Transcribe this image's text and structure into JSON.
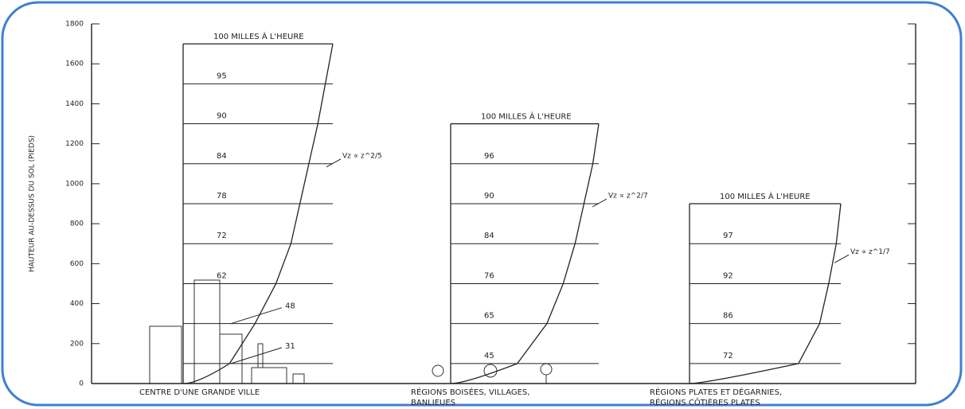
{
  "chart_data": {
    "type": "wind-profile",
    "ylabel": "HAUTEUR AU-DESSUS DU SOL (PIEDS)",
    "ylim": [
      0,
      1800
    ],
    "yticks": [
      0,
      200,
      400,
      600,
      800,
      1000,
      1200,
      1400,
      1600,
      1800
    ],
    "color": "#222222",
    "panels": [
      {
        "title": "100 MILLES À L'HEURE",
        "label": [
          "CENTRE D'UNE GRANDE VILLE"
        ],
        "formula": "Vz ∝ z^2/5",
        "top": 1700,
        "levels": [
          {
            "height": 100,
            "speed": 31
          },
          {
            "height": 300,
            "speed": 48
          },
          {
            "height": 500,
            "speed": 62
          },
          {
            "height": 700,
            "speed": 72
          },
          {
            "height": 900,
            "speed": 78
          },
          {
            "height": 1100,
            "speed": 84
          },
          {
            "height": 1300,
            "speed": 90
          },
          {
            "height": 1500,
            "speed": 95
          }
        ]
      },
      {
        "title": "100 MILLES À L'HEURE",
        "label": [
          "RÉGIONS BOISÉES, VILLAGES,",
          "BANLIEUES"
        ],
        "formula": "Vz ∝ z^2/7",
        "top": 1300,
        "levels": [
          {
            "height": 100,
            "speed": 45
          },
          {
            "height": 300,
            "speed": 65
          },
          {
            "height": 500,
            "speed": 76
          },
          {
            "height": 700,
            "speed": 84
          },
          {
            "height": 900,
            "speed": 90
          },
          {
            "height": 1100,
            "speed": 96
          }
        ]
      },
      {
        "title": "100 MILLES À L'HEURE",
        "label": [
          "RÉGIONS PLATES ET DÉGARNIES,",
          "RÉGIONS CÔTIÈRES PLATES"
        ],
        "formula": "Vz ∝ z^1/7",
        "top": 900,
        "levels": [
          {
            "height": 100,
            "speed": 72
          },
          {
            "height": 300,
            "speed": 86
          },
          {
            "height": 500,
            "speed": 92
          },
          {
            "height": 700,
            "speed": 97
          }
        ]
      }
    ]
  }
}
